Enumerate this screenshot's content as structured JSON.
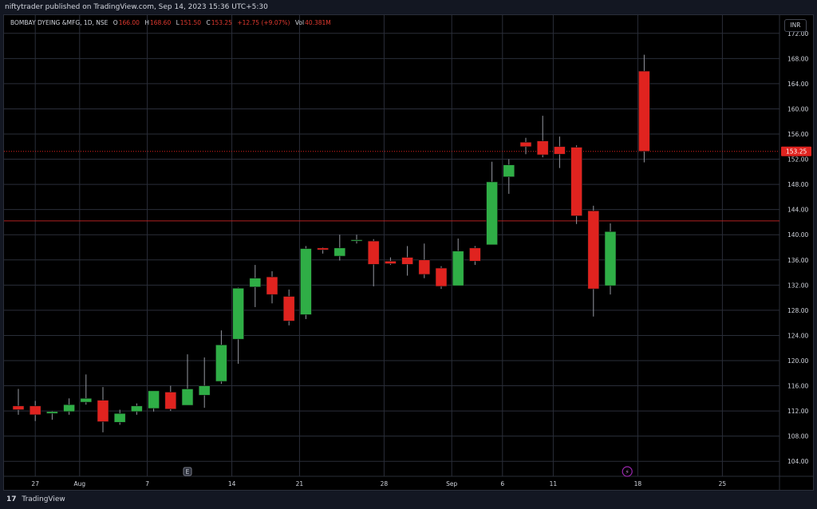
{
  "header": {
    "publish_text": "niftytrader published on TradingView.com, Sep 14, 2023 15:36 UTC+5:30"
  },
  "legend": {
    "symbol": "BOMBAY DYEING &MFG, 1D, NSE",
    "open_label": "O",
    "open_value": "166.00",
    "high_label": "H",
    "high_value": "168.60",
    "low_label": "L",
    "low_value": "151.50",
    "close_label": "C",
    "close_value": "153.25",
    "change_value": "+12.75 (+9.07%)",
    "vol_label": "Vol",
    "vol_value": "40.381M"
  },
  "currency_button": "INR",
  "footer": {
    "brand": "TradingView",
    "logo": "17"
  },
  "colors": {
    "up": "#2fae46",
    "down": "#e0231f",
    "grid": "#2a2e39",
    "axis_text": "#d1d4dc",
    "hline": "#b22222"
  },
  "chart_data": {
    "type": "candlestick",
    "ylim": [
      102,
      174
    ],
    "y_ticks": [
      104,
      108,
      112,
      116,
      120,
      124,
      128,
      132,
      136,
      140,
      144,
      148,
      152,
      156,
      160,
      164,
      168,
      172
    ],
    "x_ticks": [
      {
        "label": "27",
        "index": 1
      },
      {
        "label": "Aug",
        "index": 4
      },
      {
        "label": "7",
        "index": 8
      },
      {
        "label": "14",
        "index": 13
      },
      {
        "label": "21",
        "index": 17
      },
      {
        "label": "28",
        "index": 22
      },
      {
        "label": "Sep",
        "index": 26
      },
      {
        "label": "6",
        "index": 29
      },
      {
        "label": "11",
        "index": 32
      },
      {
        "label": "18",
        "index": 37
      },
      {
        "label": "25",
        "index": 42
      }
    ],
    "candles": [
      {
        "o": 112.8,
        "h": 115.5,
        "l": 111.4,
        "c": 112.2
      },
      {
        "o": 112.8,
        "h": 113.6,
        "l": 110.4,
        "c": 111.4
      },
      {
        "o": 111.6,
        "h": 112.0,
        "l": 110.6,
        "c": 111.9
      },
      {
        "o": 111.9,
        "h": 114.0,
        "l": 111.4,
        "c": 113.0
      },
      {
        "o": 113.4,
        "h": 117.8,
        "l": 113.0,
        "c": 114.0
      },
      {
        "o": 113.7,
        "h": 115.8,
        "l": 108.6,
        "c": 110.3
      },
      {
        "o": 110.2,
        "h": 112.2,
        "l": 109.8,
        "c": 111.6
      },
      {
        "o": 111.9,
        "h": 113.2,
        "l": 111.4,
        "c": 112.8
      },
      {
        "o": 112.4,
        "h": 115.2,
        "l": 111.9,
        "c": 115.2
      },
      {
        "o": 115.0,
        "h": 116.0,
        "l": 112.0,
        "c": 112.3
      },
      {
        "o": 112.9,
        "h": 121.0,
        "l": 112.9,
        "c": 115.5
      },
      {
        "o": 114.5,
        "h": 120.5,
        "l": 112.5,
        "c": 116.0
      },
      {
        "o": 116.7,
        "h": 124.8,
        "l": 116.3,
        "c": 122.5
      },
      {
        "o": 123.4,
        "h": 131.6,
        "l": 119.5,
        "c": 131.5
      },
      {
        "o": 131.7,
        "h": 135.2,
        "l": 128.5,
        "c": 133.1
      },
      {
        "o": 133.3,
        "h": 134.2,
        "l": 129.1,
        "c": 130.5
      },
      {
        "o": 130.2,
        "h": 131.3,
        "l": 125.6,
        "c": 126.3
      },
      {
        "o": 127.3,
        "h": 138.2,
        "l": 126.6,
        "c": 137.8
      },
      {
        "o": 137.9,
        "h": 138.0,
        "l": 137.0,
        "c": 137.6
      },
      {
        "o": 136.6,
        "h": 140.0,
        "l": 135.9,
        "c": 137.9
      },
      {
        "o": 139.0,
        "h": 140.0,
        "l": 138.6,
        "c": 139.2
      },
      {
        "o": 139.0,
        "h": 139.3,
        "l": 131.8,
        "c": 135.3
      },
      {
        "o": 135.8,
        "h": 136.4,
        "l": 135.2,
        "c": 135.4
      },
      {
        "o": 136.4,
        "h": 138.2,
        "l": 133.5,
        "c": 135.3
      },
      {
        "o": 136.0,
        "h": 138.6,
        "l": 133.1,
        "c": 133.7
      },
      {
        "o": 134.7,
        "h": 135.0,
        "l": 131.4,
        "c": 131.8
      },
      {
        "o": 131.9,
        "h": 139.4,
        "l": 131.9,
        "c": 137.4
      },
      {
        "o": 137.9,
        "h": 138.2,
        "l": 135.2,
        "c": 135.8
      },
      {
        "o": 138.4,
        "h": 151.6,
        "l": 138.4,
        "c": 148.4
      },
      {
        "o": 149.2,
        "h": 152.0,
        "l": 146.5,
        "c": 151.1
      },
      {
        "o": 154.7,
        "h": 155.4,
        "l": 152.8,
        "c": 154.0
      },
      {
        "o": 154.9,
        "h": 158.9,
        "l": 152.3,
        "c": 152.7
      },
      {
        "o": 154.0,
        "h": 155.6,
        "l": 150.6,
        "c": 152.8
      },
      {
        "o": 153.9,
        "h": 154.2,
        "l": 141.7,
        "c": 143.0
      },
      {
        "o": 143.8,
        "h": 144.6,
        "l": 127.0,
        "c": 131.4
      },
      {
        "o": 131.9,
        "h": 141.8,
        "l": 130.5,
        "c": 140.5
      },
      {
        "o": 166.0,
        "h": 168.6,
        "l": 151.5,
        "c": 153.25
      }
    ],
    "candle_x_index": [
      0,
      1,
      2,
      3,
      4,
      5,
      6,
      7,
      8,
      9,
      10,
      11,
      12,
      13,
      14,
      15,
      16,
      17,
      18,
      19,
      20,
      21,
      22,
      23,
      24,
      25,
      26,
      27,
      28,
      29,
      30,
      31,
      32,
      33,
      34,
      35,
      37
    ],
    "price_line": {
      "value": 153.25,
      "label": "153.25"
    },
    "horizontal_line": {
      "value": 142.2
    },
    "markers": [
      {
        "type": "earnings",
        "label": "E",
        "index": 10
      },
      {
        "type": "dividend-flash",
        "label": "⚡",
        "index": 36
      }
    ]
  }
}
